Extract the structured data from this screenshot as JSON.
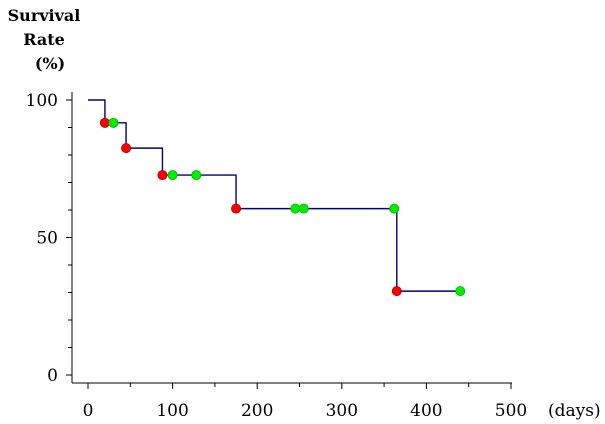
{
  "chart_data": {
    "type": "line",
    "title": "",
    "ylabel_lines": [
      "Survival",
      "Rate",
      "(%)"
    ],
    "xlabel": "(days)",
    "xlim": [
      0,
      500
    ],
    "ylim": [
      0,
      100
    ],
    "x_ticks": [
      {
        "value": 0,
        "label": "0"
      },
      {
        "value": 100,
        "label": "100"
      },
      {
        "value": 200,
        "label": "200"
      },
      {
        "value": 300,
        "label": "300"
      },
      {
        "value": 400,
        "label": "400"
      },
      {
        "value": 500,
        "label": "500"
      }
    ],
    "y_ticks": [
      {
        "value": 0,
        "label": "0"
      },
      {
        "value": 50,
        "label": "50"
      },
      {
        "value": 100,
        "label": "100"
      }
    ],
    "y_minor_ticks": [
      10,
      20,
      30,
      40,
      60,
      70,
      80,
      90
    ],
    "x_minor_ticks": [
      50,
      150,
      250,
      350,
      450
    ],
    "survival_steps": [
      {
        "x": 0,
        "y": 100
      },
      {
        "x": 20,
        "y": 91.7
      },
      {
        "x": 45,
        "y": 82.5
      },
      {
        "x": 88,
        "y": 72.7
      },
      {
        "x": 175,
        "y": 60.5
      },
      {
        "x": 365,
        "y": 30.5
      },
      {
        "x": 440,
        "y": 30.5
      }
    ],
    "series": [
      {
        "kind": "events",
        "color": "#ff0000",
        "points": [
          [
            20,
            91.7
          ],
          [
            45,
            82.5
          ],
          [
            88,
            72.7
          ],
          [
            175,
            60.5
          ],
          [
            365,
            30.5
          ]
        ]
      },
      {
        "kind": "censored",
        "color": "#00ee00",
        "points": [
          [
            30,
            91.7
          ],
          [
            100,
            72.7
          ],
          [
            128,
            72.7
          ],
          [
            245,
            60.5
          ],
          [
            255,
            60.5
          ],
          [
            362,
            60.5
          ],
          [
            440,
            30.5
          ]
        ]
      }
    ],
    "line_color": "#000080",
    "grid": false
  }
}
